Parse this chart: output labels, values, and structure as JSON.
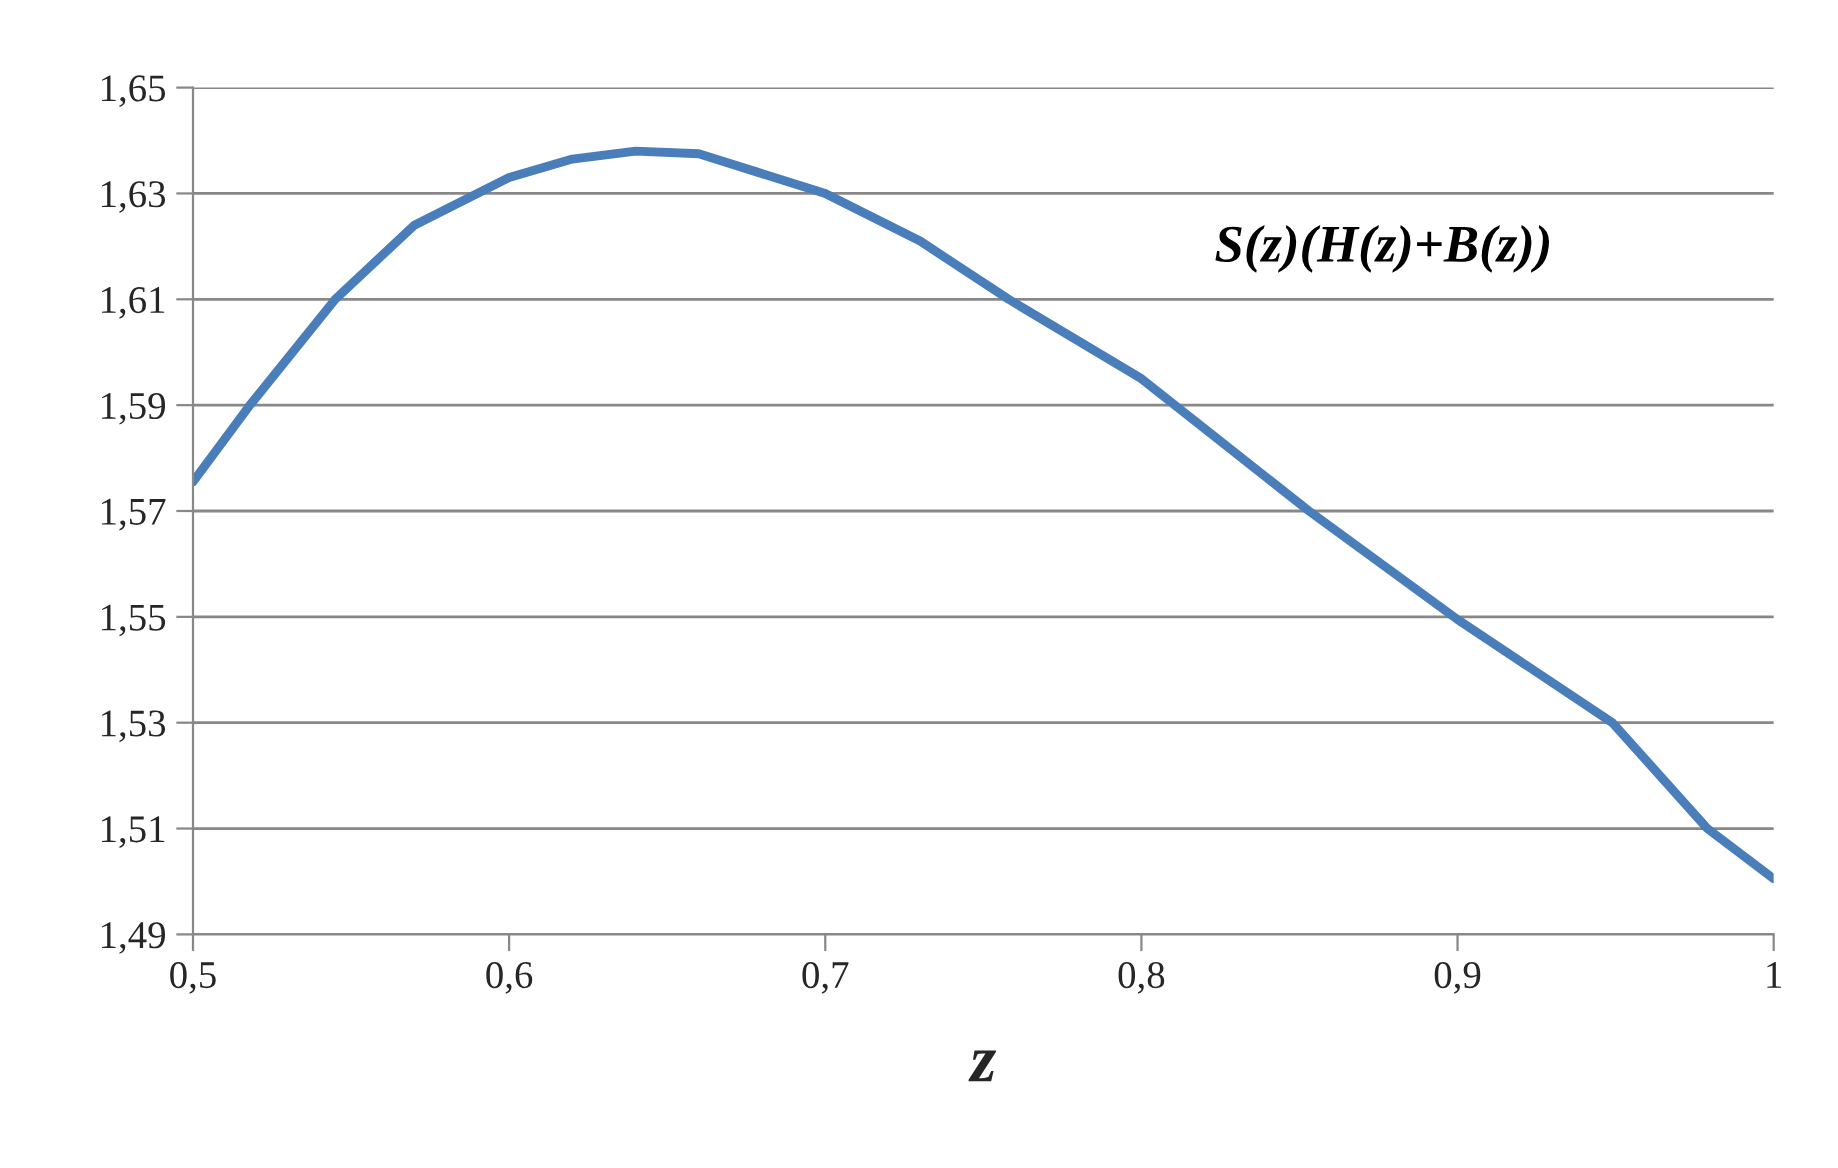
{
  "chart_data": {
    "type": "line",
    "xlabel": "z",
    "x": [
      0.5,
      0.518,
      0.545,
      0.57,
      0.6,
      0.62,
      0.64,
      0.66,
      0.7,
      0.73,
      0.758,
      0.8,
      0.853,
      0.9,
      0.949,
      0.979,
      1.0
    ],
    "series": [
      {
        "name": "S(z)(H(z)+B(z))",
        "color": "#4a7ebb",
        "values": [
          1.5755,
          1.59,
          1.61,
          1.624,
          1.633,
          1.6365,
          1.638,
          1.6375,
          1.63,
          1.621,
          1.61,
          1.595,
          1.57,
          1.5495,
          1.53,
          1.51,
          1.5005
        ]
      }
    ],
    "xlim": [
      0.5,
      1.0
    ],
    "xticks": [
      {
        "value": 0.5,
        "label": "0,5"
      },
      {
        "value": 0.6,
        "label": "0,6"
      },
      {
        "value": 0.7,
        "label": "0,7"
      },
      {
        "value": 0.8,
        "label": "0,8"
      },
      {
        "value": 0.9,
        "label": "0,9"
      },
      {
        "value": 1.0,
        "label": "1"
      }
    ],
    "ylim": [
      1.49,
      1.65
    ],
    "yticks": [
      {
        "value": 1.49,
        "label": "1,49"
      },
      {
        "value": 1.51,
        "label": "1,51"
      },
      {
        "value": 1.53,
        "label": "1,53"
      },
      {
        "value": 1.55,
        "label": "1,55"
      },
      {
        "value": 1.57,
        "label": "1,57"
      },
      {
        "value": 1.59,
        "label": "1,59"
      },
      {
        "value": 1.61,
        "label": "1,61"
      },
      {
        "value": 1.63,
        "label": "1,63"
      },
      {
        "value": 1.65,
        "label": "1,65"
      }
    ],
    "grid": "y",
    "legend": false,
    "marker": "none",
    "line_style": "solid"
  }
}
